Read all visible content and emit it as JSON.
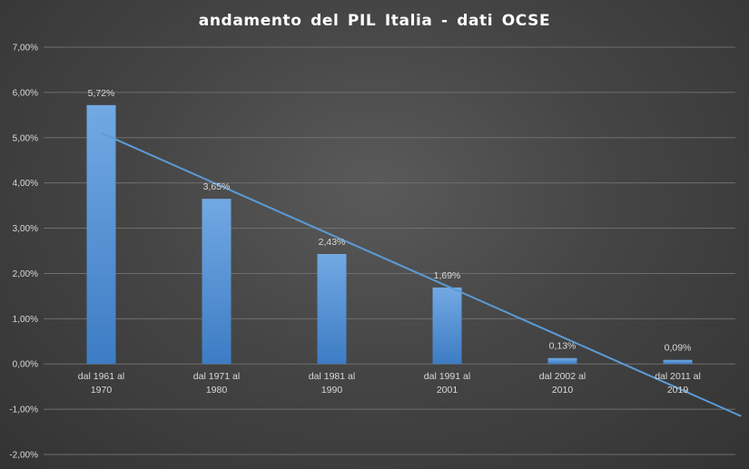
{
  "chart_data": {
    "type": "bar",
    "title": "andamento  del PIL Italia - dati OCSE",
    "categories": [
      [
        "dal 1961 al",
        "1970"
      ],
      [
        "dal 1971 al",
        "1980"
      ],
      [
        "dal 1981 al",
        "1990"
      ],
      [
        "dal 1991 al",
        "2001"
      ],
      [
        "dal 2002 al",
        "2010"
      ],
      [
        "dal 2011 al",
        "2019"
      ]
    ],
    "values": [
      5.72,
      3.65,
      2.43,
      1.69,
      0.13,
      0.09
    ],
    "data_labels": [
      "5,72%",
      "3,65%",
      "2,43%",
      "1,69%",
      "0,13%",
      "0,09%"
    ],
    "ylim": [
      -2,
      7
    ],
    "yticks": [
      7,
      6,
      5,
      4,
      3,
      2,
      1,
      0,
      -1,
      -2
    ],
    "ytick_labels": [
      "7,00%",
      "6,00%",
      "5,00%",
      "4,00%",
      "3,00%",
      "2,00%",
      "1,00%",
      "0,00%",
      "-1,00%",
      "-2,00%"
    ],
    "trendline": {
      "type": "linear",
      "extends_past_last_category": true
    },
    "grid": true,
    "legend": "none",
    "colors": {
      "bar_top": "#72a9e3",
      "bar_bottom": "#3d7cc4",
      "trendline": "#5b9bd5",
      "gridline": "#6e6e6e",
      "text": "#d9d9d9",
      "title": "#ffffff"
    }
  }
}
